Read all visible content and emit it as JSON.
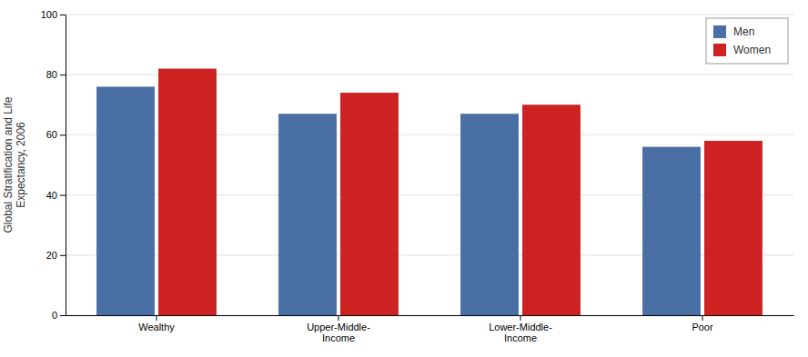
{
  "chart_data": {
    "type": "bar",
    "categories": [
      "Wealthy",
      "Upper-Middle-\nIncome",
      "Lower-Middle-\nIncome",
      "Poor"
    ],
    "series": [
      {
        "name": "Men",
        "color": "#4a6fa5",
        "values": [
          76,
          67,
          67,
          56
        ]
      },
      {
        "name": "Women",
        "color": "#cc2222",
        "values": [
          82,
          74,
          70,
          58
        ]
      }
    ],
    "ylabel": "Global Stratification and Life\nExpectancy, 2006",
    "ylim": [
      0,
      100
    ],
    "yticks": [
      0,
      20,
      40,
      60,
      80,
      100
    ],
    "grid": true,
    "legend": "upper-right"
  }
}
